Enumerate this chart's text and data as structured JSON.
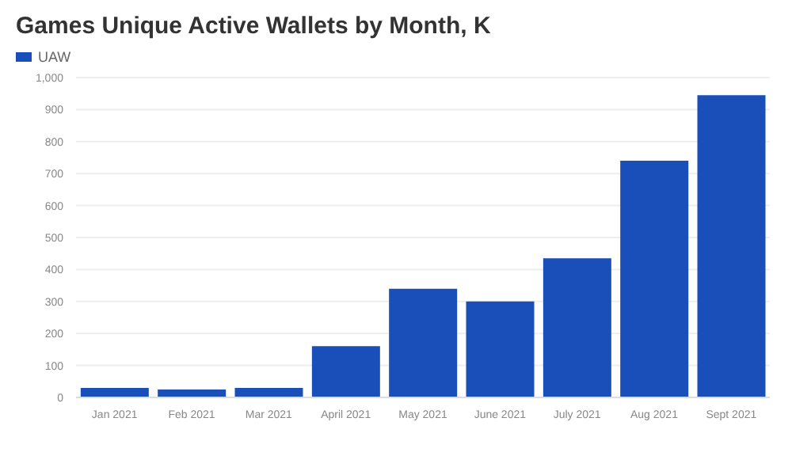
{
  "chart_data": {
    "type": "bar",
    "title": "Games Unique Active Wallets by Month, K",
    "categories": [
      "Jan 2021",
      "Feb 2021",
      "Mar 2021",
      "April 2021",
      "May 2021",
      "June 2021",
      "July 2021",
      "Aug 2021",
      "Sept 2021"
    ],
    "series": [
      {
        "name": "UAW",
        "color": "#1a4fba",
        "values": [
          30,
          25,
          30,
          160,
          340,
          300,
          435,
          740,
          945
        ]
      }
    ],
    "ylim": [
      0,
      1000
    ],
    "yticks": [
      0,
      100,
      200,
      300,
      400,
      500,
      600,
      700,
      800,
      900,
      {
        "value": 1000,
        "label": "1,000"
      }
    ],
    "grid": "y",
    "legend": "top left"
  }
}
